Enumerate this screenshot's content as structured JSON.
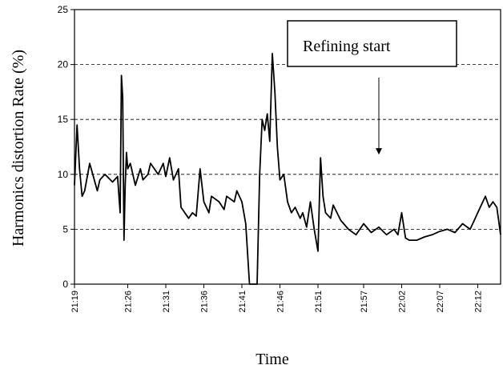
{
  "chart_data": {
    "type": "line",
    "title": "",
    "xlabel": "Time",
    "ylabel": "Harmonics distortion Rate (%)",
    "ylim": [
      0,
      25
    ],
    "yticks": [
      0,
      5,
      10,
      15,
      20,
      25
    ],
    "xlim": [
      "21:19",
      "22:15"
    ],
    "xtick_labels": [
      "21:19",
      "21:26",
      "21:31",
      "21:36",
      "21:41",
      "21:46",
      "21:51",
      "21:57",
      "22:02",
      "22:07",
      "22:12"
    ],
    "grid": "horizontal dashed at 5, 10, 15, 20",
    "annotation": {
      "text": "Refining start",
      "arrow_at_x": "21:59",
      "arrow_to_y": 11.8
    },
    "series": [
      {
        "color": "#000000",
        "x": [
          "21:19",
          "21:19:20",
          "21:19:40",
          "21:20",
          "21:20:20",
          "21:21",
          "21:22",
          "21:22:20",
          "21:23",
          "21:24",
          "21:24:40",
          "21:25",
          "21:25:10",
          "21:25:20",
          "21:25:30",
          "21:25:40",
          "21:25:50",
          "21:26",
          "21:26:20",
          "21:27",
          "21:27:40",
          "21:28",
          "21:28:40",
          "21:29",
          "21:30",
          "21:30:40",
          "21:31",
          "21:31:30",
          "21:32",
          "21:32:40",
          "21:33",
          "21:34",
          "21:34:30",
          "21:35",
          "21:35:30",
          "21:36",
          "21:36:40",
          "21:37",
          "21:38",
          "21:38:40",
          "21:39",
          "21:40",
          "21:40:20",
          "21:41",
          "21:41:30",
          "21:42",
          "21:43",
          "21:43:20",
          "21:43:40",
          "21:44",
          "21:44:20",
          "21:44:40",
          "21:45",
          "21:45:20",
          "21:45:40",
          "21:46",
          "21:46:30",
          "21:47",
          "21:47:30",
          "21:48",
          "21:48:40",
          "21:49",
          "21:49:30",
          "21:50",
          "21:50:30",
          "21:51",
          "21:51:20",
          "21:51:40",
          "21:52",
          "21:52:40",
          "21:53",
          "21:54",
          "21:55",
          "21:56",
          "21:57",
          "21:58",
          "21:59",
          "22:00",
          "22:01",
          "22:01:30",
          "22:02",
          "22:02:30",
          "22:03",
          "22:04",
          "22:05",
          "22:06",
          "22:07",
          "22:08",
          "22:09",
          "22:10",
          "22:11",
          "22:12",
          "22:12:40",
          "22:13",
          "22:13:30",
          "22:14",
          "22:14:30",
          "22:15"
        ],
        "y": [
          9.0,
          14.5,
          10.5,
          8.0,
          8.5,
          11.0,
          8.5,
          9.5,
          10.0,
          9.3,
          9.8,
          6.5,
          19.0,
          17.0,
          4.0,
          9.0,
          12.0,
          10.5,
          11.0,
          9.0,
          10.5,
          9.5,
          10.0,
          11.0,
          10.0,
          11.0,
          9.8,
          11.5,
          9.5,
          10.5,
          7.0,
          6.0,
          6.5,
          6.2,
          10.5,
          7.5,
          6.5,
          8.0,
          7.5,
          6.8,
          8.0,
          7.5,
          8.5,
          7.5,
          5.5,
          0.0,
          0.0,
          10.0,
          15.0,
          14.0,
          15.5,
          13.0,
          21.0,
          17.5,
          12.5,
          9.5,
          10.0,
          7.5,
          6.5,
          7.0,
          6.0,
          6.5,
          5.2,
          7.5,
          5.0,
          3.0,
          11.5,
          8.0,
          6.5,
          6.0,
          7.2,
          5.8,
          5.0,
          4.5,
          5.5,
          4.7,
          5.2,
          4.5,
          5.0,
          4.5,
          6.5,
          4.2,
          4.0,
          4.0,
          4.3,
          4.5,
          4.8,
          5.0,
          4.7,
          5.5,
          5.0,
          6.5,
          7.5,
          8.0,
          7.0,
          7.5,
          7.0,
          4.5
        ]
      }
    ]
  }
}
